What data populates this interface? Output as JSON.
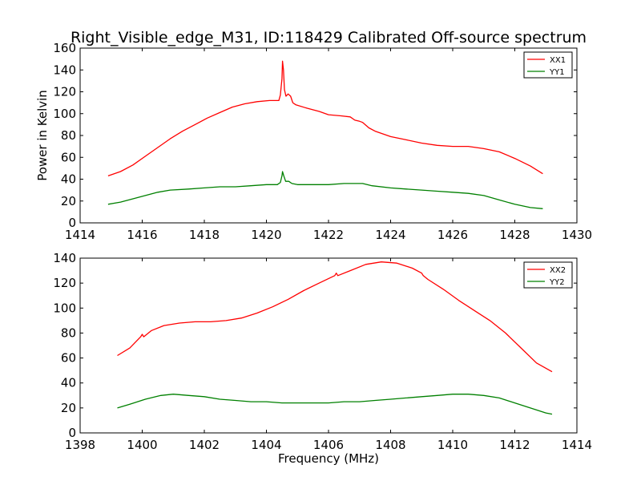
{
  "figure": {
    "title": "Right_Visible_edge_M31, ID:118429 Calibrated Off-source spectrum",
    "ylabel": "Power in Kelvin",
    "xlabel": "Frequency (MHz)"
  },
  "chart_data": [
    {
      "type": "line",
      "title": "Right_Visible_edge_M31, ID:118429 Calibrated Off-source spectrum",
      "xlabel": "",
      "ylabel": "Power in Kelvin",
      "xlim": [
        1414,
        1430
      ],
      "ylim": [
        0,
        160
      ],
      "xticks": [
        1414,
        1416,
        1418,
        1420,
        1422,
        1424,
        1426,
        1428,
        1430
      ],
      "yticks": [
        0,
        20,
        40,
        60,
        80,
        100,
        120,
        140,
        160
      ],
      "grid": false,
      "legend": "top-right",
      "series": [
        {
          "name": "XX1",
          "color": "#ff0000",
          "points": [
            [
              1414.9,
              43
            ],
            [
              1415.3,
              47
            ],
            [
              1415.7,
              53
            ],
            [
              1416.1,
              61
            ],
            [
              1416.5,
              69
            ],
            [
              1416.9,
              77
            ],
            [
              1417.3,
              84
            ],
            [
              1417.7,
              90
            ],
            [
              1418.1,
              96
            ],
            [
              1418.5,
              101
            ],
            [
              1418.9,
              106
            ],
            [
              1419.3,
              109
            ],
            [
              1419.7,
              111
            ],
            [
              1420.1,
              112
            ],
            [
              1420.4,
              112
            ],
            [
              1420.45,
              117
            ],
            [
              1420.5,
              132
            ],
            [
              1420.52,
              148
            ],
            [
              1420.55,
              140
            ],
            [
              1420.58,
              122
            ],
            [
              1420.63,
              116
            ],
            [
              1420.7,
              118
            ],
            [
              1420.78,
              116
            ],
            [
              1420.85,
              110
            ],
            [
              1420.95,
              108
            ],
            [
              1421.3,
              105
            ],
            [
              1421.7,
              102
            ],
            [
              1422.0,
              99
            ],
            [
              1422.4,
              98
            ],
            [
              1422.7,
              97
            ],
            [
              1422.85,
              94
            ],
            [
              1423.0,
              93
            ],
            [
              1423.1,
              92
            ],
            [
              1423.3,
              87
            ],
            [
              1423.5,
              84
            ],
            [
              1424.0,
              79
            ],
            [
              1424.5,
              76
            ],
            [
              1425.0,
              73
            ],
            [
              1425.5,
              71
            ],
            [
              1426.0,
              70
            ],
            [
              1426.5,
              70
            ],
            [
              1427.0,
              68
            ],
            [
              1427.5,
              65
            ],
            [
              1428.0,
              59
            ],
            [
              1428.5,
              52
            ],
            [
              1428.9,
              45
            ]
          ]
        },
        {
          "name": "YY1",
          "color": "#008000",
          "points": [
            [
              1414.9,
              17
            ],
            [
              1415.3,
              19
            ],
            [
              1415.7,
              22
            ],
            [
              1416.1,
              25
            ],
            [
              1416.5,
              28
            ],
            [
              1416.9,
              30
            ],
            [
              1417.5,
              31
            ],
            [
              1418.0,
              32
            ],
            [
              1418.5,
              33
            ],
            [
              1419.0,
              33
            ],
            [
              1419.5,
              34
            ],
            [
              1420.0,
              35
            ],
            [
              1420.35,
              35
            ],
            [
              1420.45,
              37
            ],
            [
              1420.5,
              43
            ],
            [
              1420.52,
              47
            ],
            [
              1420.56,
              43
            ],
            [
              1420.62,
              38
            ],
            [
              1420.72,
              38
            ],
            [
              1420.82,
              36
            ],
            [
              1421.0,
              35
            ],
            [
              1421.5,
              35
            ],
            [
              1422.0,
              35
            ],
            [
              1422.5,
              36
            ],
            [
              1423.0,
              36
            ],
            [
              1423.1,
              36
            ],
            [
              1423.4,
              34
            ],
            [
              1424.0,
              32
            ],
            [
              1424.5,
              31
            ],
            [
              1425.0,
              30
            ],
            [
              1425.5,
              29
            ],
            [
              1426.0,
              28
            ],
            [
              1426.5,
              27
            ],
            [
              1427.0,
              25
            ],
            [
              1427.5,
              21
            ],
            [
              1428.0,
              17
            ],
            [
              1428.5,
              14
            ],
            [
              1428.9,
              13
            ]
          ]
        }
      ]
    },
    {
      "type": "line",
      "title": "",
      "xlabel": "Frequency (MHz)",
      "ylabel": "",
      "xlim": [
        1398,
        1414
      ],
      "ylim": [
        0,
        140
      ],
      "xticks": [
        1398,
        1400,
        1402,
        1404,
        1406,
        1408,
        1410,
        1412,
        1414
      ],
      "yticks": [
        0,
        20,
        40,
        60,
        80,
        100,
        120,
        140
      ],
      "grid": false,
      "legend": "top-right",
      "series": [
        {
          "name": "XX2",
          "color": "#ff0000",
          "points": [
            [
              1399.2,
              62
            ],
            [
              1399.6,
              68
            ],
            [
              1399.95,
              77
            ],
            [
              1400.0,
              79
            ],
            [
              1400.05,
              77
            ],
            [
              1400.3,
              82
            ],
            [
              1400.7,
              86
            ],
            [
              1401.2,
              88
            ],
            [
              1401.7,
              89
            ],
            [
              1402.2,
              89
            ],
            [
              1402.7,
              90
            ],
            [
              1403.2,
              92
            ],
            [
              1403.7,
              96
            ],
            [
              1404.2,
              101
            ],
            [
              1404.7,
              107
            ],
            [
              1405.2,
              114
            ],
            [
              1405.7,
              120
            ],
            [
              1406.2,
              126
            ],
            [
              1406.25,
              128
            ],
            [
              1406.3,
              126
            ],
            [
              1406.7,
              130
            ],
            [
              1407.2,
              135
            ],
            [
              1407.7,
              137
            ],
            [
              1408.2,
              136
            ],
            [
              1408.7,
              132
            ],
            [
              1409.0,
              128
            ],
            [
              1409.05,
              126
            ],
            [
              1409.2,
              123
            ],
            [
              1409.7,
              115
            ],
            [
              1410.2,
              106
            ],
            [
              1410.7,
              98
            ],
            [
              1411.2,
              90
            ],
            [
              1411.7,
              80
            ],
            [
              1412.2,
              68
            ],
            [
              1412.7,
              56
            ],
            [
              1413.2,
              49
            ]
          ]
        },
        {
          "name": "YY2",
          "color": "#008000",
          "points": [
            [
              1399.2,
              20
            ],
            [
              1399.6,
              23
            ],
            [
              1400.1,
              27
            ],
            [
              1400.6,
              30
            ],
            [
              1401.0,
              31
            ],
            [
              1401.5,
              30
            ],
            [
              1402.0,
              29
            ],
            [
              1402.5,
              27
            ],
            [
              1403.0,
              26
            ],
            [
              1403.5,
              25
            ],
            [
              1404.0,
              25
            ],
            [
              1404.5,
              24
            ],
            [
              1405.0,
              24
            ],
            [
              1405.5,
              24
            ],
            [
              1406.0,
              24
            ],
            [
              1406.5,
              25
            ],
            [
              1407.0,
              25
            ],
            [
              1407.5,
              26
            ],
            [
              1408.0,
              27
            ],
            [
              1408.5,
              28
            ],
            [
              1409.0,
              29
            ],
            [
              1409.5,
              30
            ],
            [
              1410.0,
              31
            ],
            [
              1410.5,
              31
            ],
            [
              1411.0,
              30
            ],
            [
              1411.5,
              28
            ],
            [
              1412.0,
              24
            ],
            [
              1412.5,
              20
            ],
            [
              1413.0,
              16
            ],
            [
              1413.2,
              15
            ]
          ]
        }
      ]
    }
  ]
}
